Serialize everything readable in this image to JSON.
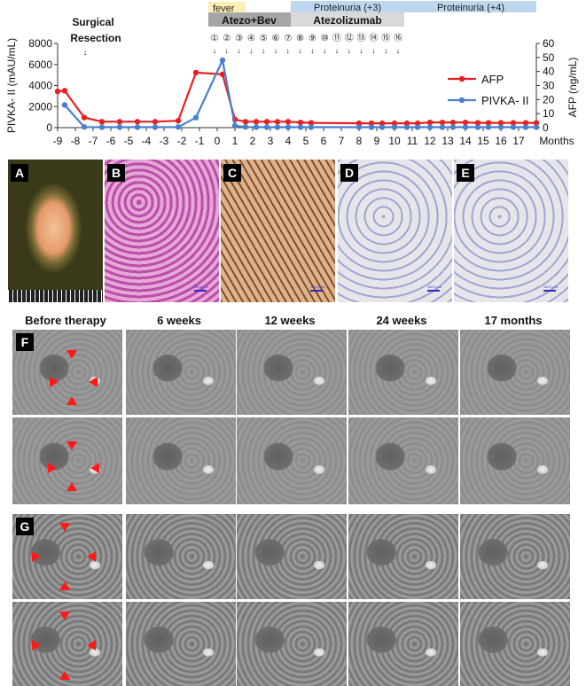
{
  "chart_data": {
    "type": "line",
    "x_ticks": [
      -9,
      -8,
      -7,
      -6,
      -5,
      -4,
      -3,
      -2,
      -1,
      0,
      1,
      2,
      3,
      4,
      5,
      6,
      7,
      8,
      9,
      10,
      11,
      12,
      13,
      14,
      15,
      16,
      17
    ],
    "xlabel": "Months",
    "ylabel_left": "PIVKA- II (mAU/mL)",
    "ylabel_right": "AFP (ng/mL)",
    "ylim_left": [
      0,
      8000
    ],
    "yticks_left": [
      0,
      2000,
      4000,
      6000,
      8000
    ],
    "ylim_right": [
      0,
      60
    ],
    "yticks_right": [
      0,
      10,
      20,
      30,
      40,
      50,
      60
    ],
    "xlim": [
      -9,
      18
    ],
    "legend_position": "right",
    "series": [
      {
        "name": "AFP",
        "axis": "right",
        "color": "#e8201f",
        "x": [
          -9,
          -8.6,
          -7.5,
          -6.5,
          -5.5,
          -4.5,
          -3.5,
          -2.2,
          -1.2,
          0.3,
          1.0,
          1.6,
          2.2,
          2.8,
          3.4,
          4.0,
          4.7,
          5.3,
          8.0,
          8.7,
          9.3,
          10.0,
          10.7,
          11.3,
          12.0,
          12.7,
          13.3,
          14.0,
          14.7,
          15.3,
          16.0,
          16.7,
          17.4,
          18.0
        ],
        "values": [
          25.8,
          26.3,
          7.2,
          4.2,
          4.2,
          4.2,
          4.2,
          4.9,
          39.2,
          38.0,
          5.8,
          4.2,
          4.2,
          4.2,
          4.2,
          4.2,
          3.7,
          3.4,
          3.1,
          3.1,
          3.1,
          3.1,
          3.1,
          3.1,
          3.7,
          3.7,
          3.7,
          3.7,
          3.4,
          3.4,
          3.4,
          3.4,
          3.4,
          3.4
        ]
      },
      {
        "name": "PIVKA- II",
        "axis": "left",
        "color": "#4a7fcf",
        "x": [
          -8.6,
          -7.5,
          -6.5,
          -5.5,
          -4.5,
          -3.5,
          -2.2,
          -1.2,
          0.3,
          1.0,
          1.6,
          2.2,
          2.8,
          3.4,
          4.0,
          4.7,
          5.3,
          8.0,
          8.7,
          9.3,
          10.0,
          10.7,
          11.3,
          12.0,
          12.7,
          13.3,
          14.0,
          14.7,
          15.3,
          16.0,
          16.7,
          17.4,
          18.0
        ],
        "values": [
          2150,
          60,
          40,
          40,
          40,
          40,
          60,
          950,
          6400,
          180,
          60,
          40,
          40,
          40,
          40,
          40,
          40,
          40,
          40,
          40,
          40,
          40,
          40,
          40,
          40,
          40,
          40,
          40,
          40,
          40,
          40,
          40,
          40
        ]
      }
    ],
    "annotations": {
      "surgical_resection": "Surgical\nResection",
      "surgery_arrow": "↓",
      "fever": "fever",
      "atezo_bev": "Atezo+Bev",
      "atezolizumab": "Atezolizumab",
      "proteinuria_3": "Proteinuria (+3)",
      "proteinuria_4": "Proteinuria (+4)",
      "cycle_numbers": [
        "①",
        "②",
        "③",
        "④",
        "⑤",
        "⑥",
        "⑦",
        "⑧",
        "⑨",
        "⑩",
        "⑪",
        "⑫",
        "⑬",
        "⑭",
        "⑮",
        "⑯"
      ]
    }
  },
  "panels": {
    "histology": [
      {
        "letter": "A",
        "kind": "gross",
        "scale_label": ""
      },
      {
        "letter": "B",
        "kind": "he",
        "scale_label": "50.0 μ m"
      },
      {
        "letter": "C",
        "kind": "ihc-brown",
        "scale_label": "50.0 μ m"
      },
      {
        "letter": "D",
        "kind": "ihc-neg",
        "scale_label": "50.0 μ m"
      },
      {
        "letter": "E",
        "kind": "ihc-neg",
        "scale_label": "50.0 μ m"
      }
    ],
    "ct_headers": [
      "Before therapy",
      "6 weeks",
      "12 weeks",
      "24 weeks",
      "17 months"
    ],
    "ct_rows": [
      "F",
      "G"
    ]
  },
  "colors": {
    "afp": "#e8201f",
    "pivka": "#4a7fcf",
    "atezo_bev_box": "#a6a6a6",
    "atezolizumab_box": "#d9d9d9",
    "fever_box": "#fdeeb3",
    "proteinuria_box": "#bdd7ee",
    "arrowheads": "#ff1a1a"
  }
}
